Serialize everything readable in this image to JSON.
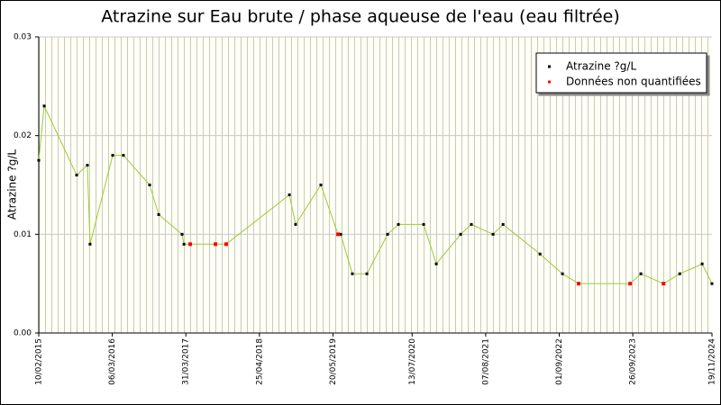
{
  "chart_data": {
    "type": "line",
    "title": "Atrazine sur Eau brute / phase aqueuse de l'eau (eau filtrée)",
    "y_label": "Atrazine ?g/L",
    "xlim": [
      "10/02/2015",
      "19/11/2024"
    ],
    "xticks": [
      "10/02/2015",
      "06/03/2016",
      "31/03/2017",
      "25/04/2018",
      "20/05/2019",
      "13/07/2020",
      "07/08/2021",
      "01/09/2022",
      "26/09/2023",
      "19/11/2024"
    ],
    "ylim": [
      0,
      0.03
    ],
    "yticks": [
      {
        "value": 0,
        "label": "0.00"
      },
      {
        "value": 0.01,
        "label": "0.01"
      },
      {
        "value": 0.02,
        "label": "0.02"
      },
      {
        "value": 0.03,
        "label": "0.03"
      }
    ],
    "grid": true,
    "legend": "upper right",
    "series": [
      {
        "name": "Atrazine ?g/L",
        "color": "#99cc33",
        "marker_color": "#000000",
        "x": [
          "10/02/2015",
          "11/03/2015",
          "30/08/2015",
          "26/10/2015",
          "09/11/2015",
          "08/03/2016",
          "04/05/2016",
          "20/09/2016",
          "07/11/2016",
          "11/03/2017",
          "21/03/2017",
          "23/04/2017",
          "04/09/2017",
          "31/10/2017",
          "01/10/2018",
          "03/11/2018",
          "17/03/2019",
          "16/06/2019",
          "30/06/2019",
          "31/08/2019",
          "16/11/2019",
          "05/03/2020",
          "01/05/2020",
          "12/09/2020",
          "18/11/2020",
          "27/03/2021",
          "23/05/2021",
          "15/09/2021",
          "07/11/2021",
          "22/05/2022",
          "18/09/2022",
          "13/12/2022",
          "12/09/2023",
          "08/11/2023",
          "07/03/2024",
          "01/06/2024",
          "28/09/2024",
          "19/11/2024"
        ],
        "values": [
          0.0175,
          0.023,
          0.016,
          0.017,
          0.009,
          0.018,
          0.018,
          0.015,
          0.012,
          0.01,
          0.009,
          0.009,
          0.009,
          0.009,
          0.014,
          0.011,
          0.015,
          0.01,
          0.01,
          0.006,
          0.006,
          0.01,
          0.011,
          0.011,
          0.007,
          0.01,
          0.011,
          0.01,
          0.011,
          0.008,
          0.006,
          0.005,
          0.005,
          0.006,
          0.005,
          0.006,
          0.007,
          0.005
        ]
      },
      {
        "name": "Données non quantifiées",
        "color": "#ff0000",
        "x": [
          "23/04/2017",
          "04/09/2017",
          "31/10/2017",
          "16/06/2019",
          "13/12/2022",
          "12/09/2023",
          "07/03/2024"
        ],
        "values": [
          0.009,
          0.009,
          0.009,
          0.01,
          0.005,
          0.005,
          0.005
        ]
      }
    ]
  }
}
